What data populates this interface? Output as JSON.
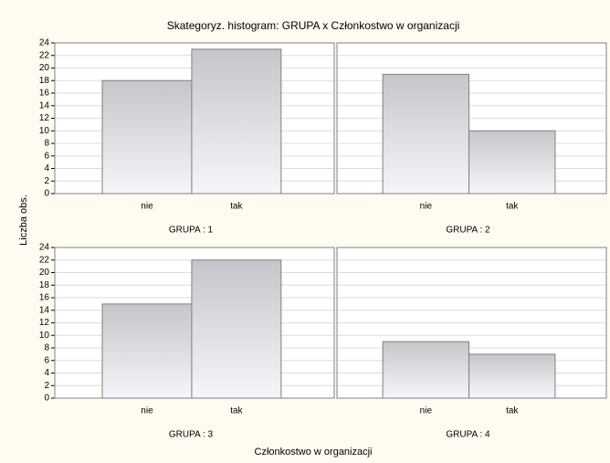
{
  "chart_data": {
    "type": "bar",
    "title": "Skategoryz. histogram: GRUPA x Członkostwo w organizacji",
    "xlabel": "Członkostwo w organizacji",
    "ylabel": "Liczba obs.",
    "categories": [
      "nie",
      "tak"
    ],
    "ylim": [
      0,
      24
    ],
    "yticks": [
      0,
      2,
      4,
      6,
      8,
      10,
      12,
      14,
      16,
      18,
      20,
      22,
      24
    ],
    "grid": true,
    "panels": [
      {
        "name": "GRUPA  : 1",
        "values": [
          18,
          23
        ]
      },
      {
        "name": "GRUPA  : 2",
        "values": [
          19,
          10
        ]
      },
      {
        "name": "GRUPA  : 3",
        "values": [
          15,
          22
        ]
      },
      {
        "name": "GRUPA  : 4",
        "values": [
          9,
          7
        ]
      }
    ]
  }
}
